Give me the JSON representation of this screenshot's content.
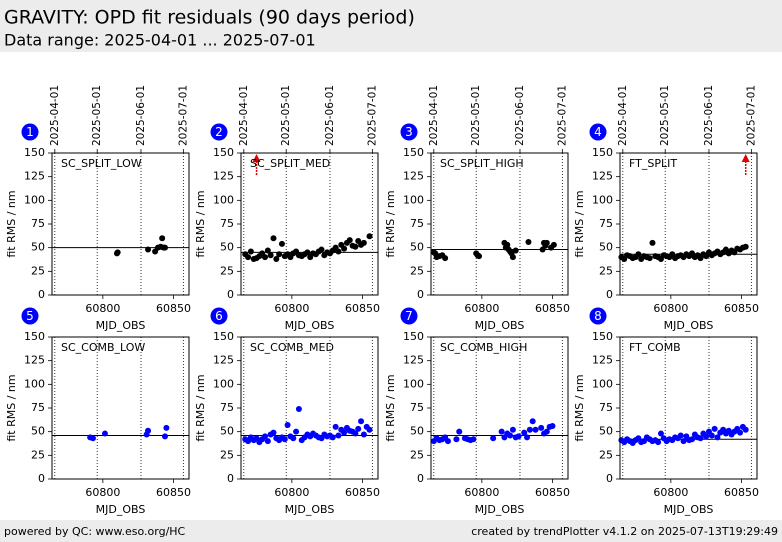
{
  "header": {
    "title": "GRAVITY: OPD fit residuals (90 days period)",
    "subtitle": "Data range: 2025-04-01 ... 2025-07-01"
  },
  "footer": {
    "left": "powered by QC: www.eso.org/HC",
    "right": "created by trendPlotter v4.1.2 on 2025-07-13T19:29:49"
  },
  "chart_data": [
    {
      "type": "scatter",
      "panel": "1",
      "title": "SC_SPLIT_LOW",
      "xlabel": "MJD_OBS",
      "ylabel": "fit RMS / nm",
      "color": "#000000",
      "xlim": [
        60764,
        60861
      ],
      "ylim": [
        0,
        150
      ],
      "xticks": [
        60800,
        60850
      ],
      "yticks": [
        0,
        25,
        50,
        75,
        100,
        125,
        150
      ],
      "date_ticks": [
        {
          "value": 60766,
          "label": "2025-04-01"
        },
        {
          "value": 60796,
          "label": "2025-05-01"
        },
        {
          "value": 60827,
          "label": "2025-06-01"
        },
        {
          "value": 60857,
          "label": "2025-07-01"
        }
      ],
      "ref": 50,
      "x": [
        60810,
        60810.5,
        60832,
        60837,
        60839,
        60841,
        60842,
        60843,
        60844
      ],
      "values": [
        44,
        45,
        48,
        46,
        50,
        51,
        60,
        50,
        50
      ]
    },
    {
      "type": "scatter",
      "panel": "2",
      "title": "SC_SPLIT_MED",
      "xlabel": "MJD_OBS",
      "ylabel": "fit RMS / nm",
      "color": "#000000",
      "xlim": [
        60764,
        60861
      ],
      "ylim": [
        0,
        150
      ],
      "xticks": [
        60800,
        60850
      ],
      "yticks": [
        0,
        25,
        50,
        75,
        100,
        125,
        150
      ],
      "date_ticks": [
        {
          "value": 60766,
          "label": "2025-04-01"
        },
        {
          "value": 60796,
          "label": "2025-05-01"
        },
        {
          "value": 60827,
          "label": "2025-06-01"
        },
        {
          "value": 60857,
          "label": "2025-07-01"
        }
      ],
      "ref": 45,
      "outliers_x": [
        60775
      ],
      "x": [
        60767,
        60769,
        60771,
        60773,
        60775,
        60777,
        60779,
        60781,
        60783,
        60785,
        60787,
        60789,
        60791,
        60793,
        60795,
        60797,
        60799,
        60801,
        60803,
        60805,
        60807,
        60809,
        60811,
        60813,
        60815,
        60817,
        60819,
        60821,
        60823,
        60825,
        60827,
        60829,
        60831,
        60833,
        60835,
        60837,
        60839,
        60841,
        60843,
        60845,
        60847,
        60849,
        60851,
        60855
      ],
      "values": [
        43,
        40,
        46,
        38,
        39,
        41,
        44,
        40,
        47,
        42,
        60,
        38,
        43,
        54,
        41,
        43,
        40,
        44,
        46,
        42,
        41,
        43,
        45,
        40,
        44,
        43,
        46,
        48,
        42,
        45,
        44,
        47,
        50,
        46,
        53,
        49,
        55,
        58,
        52,
        51,
        57,
        53,
        55,
        62
      ]
    },
    {
      "type": "scatter",
      "panel": "3",
      "title": "SC_SPLIT_HIGH",
      "xlabel": "MJD_OBS",
      "ylabel": "fit RMS / nm",
      "color": "#000000",
      "xlim": [
        60764,
        60861
      ],
      "ylim": [
        0,
        150
      ],
      "xticks": [
        60800,
        60850
      ],
      "yticks": [
        0,
        25,
        50,
        75,
        100,
        125,
        150
      ],
      "date_ticks": [
        {
          "value": 60766,
          "label": "2025-04-01"
        },
        {
          "value": 60796,
          "label": "2025-05-01"
        },
        {
          "value": 60827,
          "label": "2025-06-01"
        },
        {
          "value": 60857,
          "label": "2025-07-01"
        }
      ],
      "ref": 48,
      "x": [
        60766,
        60767,
        60768,
        60770,
        60772,
        60774,
        60796,
        60797,
        60798,
        60816,
        60817,
        60818,
        60819,
        60820,
        60821,
        60822,
        60824,
        60833,
        60843,
        60844,
        60845,
        60846,
        60849,
        60851
      ],
      "values": [
        45,
        44,
        40,
        41,
        42,
        39,
        44,
        42,
        41,
        55,
        50,
        53,
        48,
        46,
        44,
        40,
        47,
        56,
        48,
        55,
        52,
        55,
        50,
        53
      ]
    },
    {
      "type": "scatter",
      "panel": "4",
      "title": "FT_SPLIT",
      "xlabel": "MJD_OBS",
      "ylabel": "fit RMS / nm",
      "color": "#000000",
      "xlim": [
        60764,
        60861
      ],
      "ylim": [
        0,
        150
      ],
      "xticks": [
        60800,
        60850
      ],
      "yticks": [
        0,
        25,
        50,
        75,
        100,
        125,
        150
      ],
      "date_ticks": [
        {
          "value": 60766,
          "label": "2025-04-01"
        },
        {
          "value": 60796,
          "label": "2025-05-01"
        },
        {
          "value": 60827,
          "label": "2025-06-01"
        },
        {
          "value": 60857,
          "label": "2025-07-01"
        }
      ],
      "ref": 43,
      "outliers_x": [
        60853
      ],
      "x": [
        60765,
        60767,
        60769,
        60771,
        60773,
        60775,
        60777,
        60779,
        60781,
        60783,
        60785,
        60787,
        60789,
        60791,
        60793,
        60795,
        60797,
        60799,
        60801,
        60803,
        60805,
        60807,
        60809,
        60811,
        60813,
        60815,
        60817,
        60819,
        60821,
        60823,
        60825,
        60827,
        60829,
        60831,
        60833,
        60835,
        60837,
        60839,
        60841,
        60843,
        60845,
        60847,
        60849,
        60851,
        60853
      ],
      "values": [
        40,
        38,
        42,
        41,
        39,
        40,
        43,
        38,
        41,
        40,
        39,
        55,
        41,
        40,
        38,
        42,
        41,
        40,
        43,
        39,
        41,
        42,
        40,
        43,
        41,
        44,
        40,
        42,
        39,
        43,
        41,
        45,
        42,
        44,
        46,
        43,
        45,
        48,
        44,
        47,
        45,
        49,
        48,
        50,
        51
      ]
    },
    {
      "type": "scatter",
      "panel": "5",
      "title": "SC_COMB_LOW",
      "xlabel": "MJD_OBS",
      "ylabel": "fit RMS / nm",
      "color": "#0000ff",
      "xlim": [
        60764,
        60861
      ],
      "ylim": [
        0,
        150
      ],
      "xticks": [
        60800,
        60850
      ],
      "yticks": [
        0,
        25,
        50,
        75,
        100,
        125,
        150
      ],
      "vlines": [
        60766,
        60796,
        60827,
        60857
      ],
      "ref": 46,
      "x": [
        60791,
        60793,
        60801.5,
        60831,
        60832,
        60844,
        60845
      ],
      "values": [
        44,
        43,
        48,
        47,
        51,
        45,
        54
      ]
    },
    {
      "type": "scatter",
      "panel": "6",
      "title": "SC_COMB_MED",
      "xlabel": "MJD_OBS",
      "ylabel": "fit RMS / nm",
      "color": "#0000ff",
      "xlim": [
        60764,
        60861
      ],
      "ylim": [
        0,
        150
      ],
      "xticks": [
        60800,
        60850
      ],
      "yticks": [
        0,
        25,
        50,
        75,
        100,
        125,
        150
      ],
      "vlines": [
        60766,
        60796,
        60827,
        60857
      ],
      "ref": 46,
      "x": [
        60767,
        60769,
        60771,
        60773,
        60775,
        60777,
        60779,
        60781,
        60783,
        60785,
        60787,
        60789,
        60791,
        60793,
        60795,
        60797,
        60799,
        60801,
        60803,
        60805,
        60807,
        60809,
        60811,
        60813,
        60815,
        60817,
        60819,
        60821,
        60823,
        60825,
        60827,
        60829,
        60831,
        60833,
        60835,
        60837,
        60839,
        60841,
        60843,
        60845,
        60847,
        60849,
        60851,
        60853,
        60855
      ],
      "values": [
        42,
        40,
        44,
        41,
        43,
        39,
        42,
        45,
        40,
        47,
        49,
        43,
        41,
        44,
        42,
        57,
        45,
        43,
        50,
        74,
        41,
        44,
        47,
        45,
        48,
        46,
        44,
        43,
        47,
        45,
        46,
        44,
        55,
        46,
        52,
        49,
        54,
        51,
        50,
        48,
        53,
        61,
        47,
        55,
        52
      ]
    },
    {
      "type": "scatter",
      "panel": "7",
      "title": "SC_COMB_HIGH",
      "xlabel": "MJD_OBS",
      "ylabel": "fit RMS / nm",
      "color": "#0000ff",
      "xlim": [
        60764,
        60861
      ],
      "ylim": [
        0,
        150
      ],
      "xticks": [
        60800,
        60850
      ],
      "yticks": [
        0,
        25,
        50,
        75,
        100,
        125,
        150
      ],
      "vlines": [
        60766,
        60796,
        60827,
        60857
      ],
      "ref": 46,
      "x": [
        60766,
        60768,
        60770,
        60772,
        60774,
        60776,
        60782,
        60784,
        60788,
        60790,
        60792,
        60794,
        60808,
        60814,
        60816,
        60818,
        60820,
        60822,
        60824,
        60826,
        60830,
        60832,
        60834,
        60836,
        60838,
        60842,
        60844,
        60846,
        60848,
        60850
      ],
      "values": [
        40,
        43,
        41,
        42,
        44,
        40,
        42,
        50,
        43,
        42,
        41,
        42,
        43,
        50,
        44,
        48,
        46,
        52,
        44,
        45,
        49,
        44,
        52,
        61,
        52,
        54,
        48,
        50,
        55,
        56
      ]
    },
    {
      "type": "scatter",
      "panel": "8",
      "title": "FT_COMB",
      "xlabel": "MJD_OBS",
      "ylabel": "fit RMS / nm",
      "color": "#0000ff",
      "xlim": [
        60764,
        60861
      ],
      "ylim": [
        0,
        150
      ],
      "xticks": [
        60800,
        60850
      ],
      "yticks": [
        0,
        25,
        50,
        75,
        100,
        125,
        150
      ],
      "vlines": [
        60766,
        60796,
        60827,
        60857
      ],
      "ref": 42,
      "x": [
        60765,
        60767,
        60769,
        60771,
        60773,
        60775,
        60777,
        60779,
        60781,
        60783,
        60785,
        60787,
        60789,
        60791,
        60793,
        60795,
        60797,
        60799,
        60801,
        60803,
        60805,
        60807,
        60809,
        60811,
        60813,
        60815,
        60817,
        60819,
        60821,
        60823,
        60825,
        60827,
        60829,
        60831,
        60833,
        60835,
        60837,
        60839,
        60841,
        60843,
        60845,
        60847,
        60849,
        60851,
        60853
      ],
      "values": [
        41,
        39,
        42,
        40,
        38,
        41,
        43,
        39,
        40,
        44,
        42,
        40,
        41,
        39,
        48,
        43,
        40,
        42,
        41,
        44,
        43,
        46,
        40,
        45,
        41,
        42,
        47,
        44,
        43,
        48,
        45,
        50,
        46,
        53,
        44,
        49,
        52,
        48,
        51,
        47,
        50,
        53,
        49,
        55,
        52
      ]
    }
  ]
}
